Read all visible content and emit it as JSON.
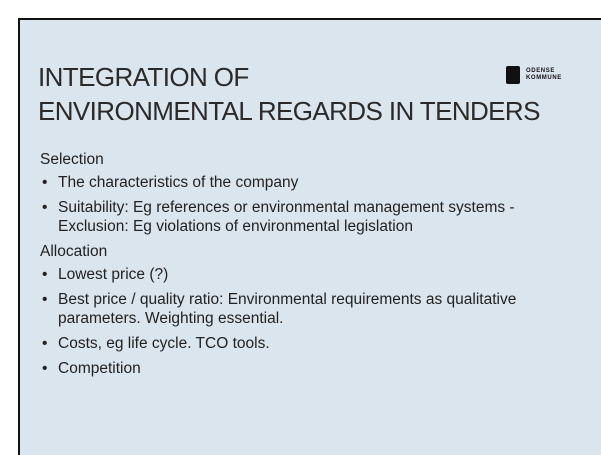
{
  "title": [
    "INTEGRATION OF",
    "ENVIRONMENTAL REGARDS IN TENDERS"
  ],
  "logo": [
    "ODENSE",
    "KOMMUNE"
  ],
  "sections": [
    {
      "heading": "Selection",
      "bullets": [
        "The characteristics of the company",
        "Suitability: Eg references or environmental management systems - Exclusion: Eg violations of environmental legislation"
      ]
    },
    {
      "heading": "Allocation",
      "bullets": [
        "Lowest price (?)",
        "Best price / quality ratio: Environmental requirements as qualitative parameters. Weighting essential.",
        "Costs, eg life cycle. TCO tools.",
        "Competition"
      ]
    }
  ]
}
